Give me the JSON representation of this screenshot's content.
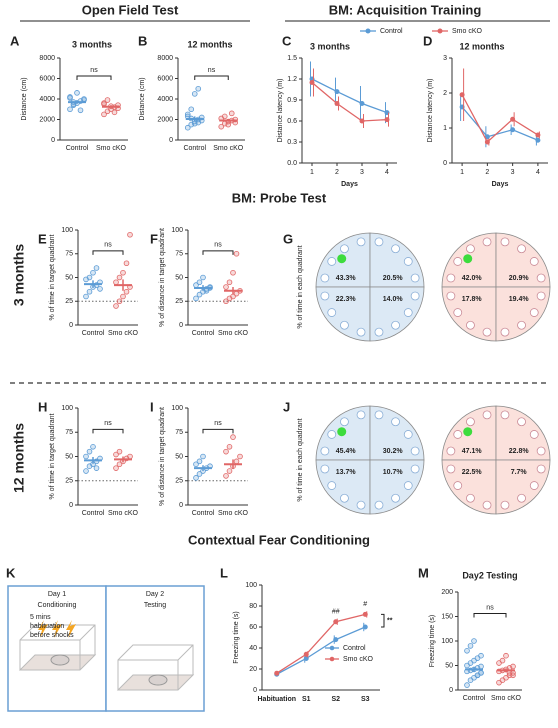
{
  "headings": {
    "open_field": "Open Field Test",
    "acquisition": "BM: Acquisition Training",
    "probe": "BM: Probe Test",
    "fear": "Contextual Fear Conditioning"
  },
  "row_labels": [
    "3 months",
    "12 months"
  ],
  "diagram": {
    "panel": "K",
    "day1": "Day 1",
    "day1_label": "Conditioning",
    "note": [
      "5 mins",
      "habituation",
      "before shocks"
    ],
    "day2": "Day 2",
    "day2_label": "Testing"
  },
  "chart_data": [
    {
      "type": "dotplot",
      "panel": "A",
      "title": "3 months",
      "ylabel": "Distance (cm)",
      "categories": [
        "Control",
        "Smo cKO"
      ],
      "ylim": [
        0,
        8000
      ],
      "yticks": [
        0,
        2000,
        4000,
        6000,
        8000
      ],
      "annotation": "ns",
      "groups": [
        {
          "color": "#5b9bd5",
          "values": [
            3000,
            3400,
            3600,
            3800,
            4000,
            4200,
            3500,
            4600,
            2900,
            3900,
            4100,
            3700
          ],
          "mean": 3700,
          "sem": 180
        },
        {
          "color": "#e06666",
          "values": [
            2500,
            2800,
            3000,
            3200,
            3400,
            3600,
            3900,
            3300,
            2700,
            3100,
            3500
          ],
          "mean": 3250,
          "sem": 150
        }
      ]
    },
    {
      "type": "dotplot",
      "panel": "B",
      "title": "12 months",
      "ylabel": "Distance (cm)",
      "categories": [
        "Control",
        "Smo cKO"
      ],
      "ylim": [
        0,
        8000
      ],
      "yticks": [
        0,
        2000,
        4000,
        6000,
        8000
      ],
      "annotation": "ns",
      "groups": [
        {
          "color": "#5b9bd5",
          "values": [
            1200,
            1500,
            1800,
            2000,
            2200,
            2500,
            3000,
            4500,
            1700,
            1900,
            2300,
            2100,
            1600,
            5000
          ],
          "mean": 2050,
          "sem": 250
        },
        {
          "color": "#e06666",
          "values": [
            1300,
            1600,
            1800,
            1900,
            2000,
            2100,
            2300,
            1500,
            2600,
            1700
          ],
          "mean": 1900,
          "sem": 120
        }
      ]
    },
    {
      "type": "line",
      "panel": "C",
      "title": "3 months",
      "xlabel": "Days",
      "ylabel": "Distance latency (m)",
      "x": [
        1,
        2,
        3,
        4
      ],
      "xlim": [
        0.6,
        4.4
      ],
      "xticks": [
        1,
        2,
        3,
        4
      ],
      "ylim": [
        0,
        1.5
      ],
      "yticks": [
        {
          "value": 0,
          "label": "0.0"
        },
        {
          "value": 0.3,
          "label": "0.3"
        },
        {
          "value": 0.6,
          "label": "0.6"
        },
        {
          "value": 0.9,
          "label": "0.9"
        },
        {
          "value": 1.2,
          "label": "1.2"
        },
        {
          "value": 1.5,
          "label": "1.5"
        }
      ],
      "series": [
        {
          "name": "Control",
          "color": "#5b9bd5",
          "values": [
            1.2,
            1.02,
            0.85,
            0.72
          ],
          "errors": [
            0.25,
            0.2,
            0.25,
            0.15
          ]
        },
        {
          "name": "Smo cKO",
          "color": "#e06666",
          "values": [
            1.15,
            0.85,
            0.6,
            0.62
          ],
          "errors": [
            0.2,
            0.1,
            0.1,
            0.1
          ]
        }
      ]
    },
    {
      "type": "line",
      "panel": "D",
      "title": "12 months",
      "xlabel": "Days",
      "ylabel": "Distance latency (m)",
      "x": [
        1,
        2,
        3,
        4
      ],
      "xlim": [
        0.6,
        4.4
      ],
      "xticks": [
        1,
        2,
        3,
        4
      ],
      "ylim": [
        0,
        3
      ],
      "yticks": [
        0,
        1,
        2,
        3
      ],
      "series": [
        {
          "name": "Control",
          "color": "#5b9bd5",
          "values": [
            1.6,
            0.75,
            0.95,
            0.65
          ],
          "errors": [
            0.4,
            0.3,
            0.15,
            0.15
          ]
        },
        {
          "name": "Smo cKO",
          "color": "#e06666",
          "values": [
            1.95,
            0.6,
            1.25,
            0.8
          ],
          "errors": [
            0.75,
            0.1,
            0.2,
            0.1
          ]
        }
      ]
    },
    {
      "type": "dotplot",
      "panel": "E",
      "ylabel": "% of time in target quadrant",
      "categories": [
        "Control",
        "Smo cKO"
      ],
      "ylim": [
        0,
        100
      ],
      "yticks": [
        0,
        25,
        50,
        75,
        100
      ],
      "annotation": "ns",
      "reference_line": 25,
      "groups": [
        {
          "color": "#5b9bd5",
          "values": [
            30,
            35,
            40,
            42,
            45,
            48,
            50,
            55,
            60,
            38
          ],
          "mean": 43,
          "sem": 4
        },
        {
          "color": "#e06666",
          "values": [
            20,
            25,
            30,
            35,
            40,
            45,
            50,
            55,
            65,
            95
          ],
          "mean": 42,
          "sem": 6
        }
      ]
    },
    {
      "type": "dotplot",
      "panel": "F",
      "ylabel": "% of distance in target quadrant",
      "categories": [
        "Control",
        "Smo cKO"
      ],
      "ylim": [
        0,
        100
      ],
      "yticks": [
        0,
        25,
        50,
        75,
        100
      ],
      "annotation": "ns",
      "reference_line": 25,
      "groups": [
        {
          "color": "#5b9bd5",
          "values": [
            28,
            32,
            35,
            38,
            40,
            42,
            45,
            50,
            36,
            39
          ],
          "mean": 39,
          "sem": 3
        },
        {
          "color": "#e06666",
          "values": [
            25,
            28,
            30,
            33,
            36,
            40,
            45,
            55,
            75
          ],
          "mean": 36,
          "sem": 4
        }
      ]
    },
    {
      "type": "quadrant",
      "panel": "G",
      "ylabel": "% of time in each quadrant",
      "groups": [
        {
          "name": "Control",
          "color": "#4a86c8",
          "fill": "#dce9f5",
          "values": [
            43.3,
            20.5,
            22.3,
            14.0
          ],
          "value_labels": [
            "43.3%",
            "20.5%",
            "22.3%",
            "14.0%"
          ]
        },
        {
          "name": "Smo cKO",
          "color": "#c0283a",
          "fill": "#fbe1dc",
          "values": [
            42.0,
            20.9,
            17.8,
            19.4
          ],
          "value_labels": [
            "42.0%",
            "20.9%",
            "17.8%",
            "19.4%"
          ]
        }
      ]
    },
    {
      "type": "dotplot",
      "panel": "H",
      "ylabel": "% of time in target quadrant",
      "categories": [
        "Control",
        "Smo cKO"
      ],
      "ylim": [
        0,
        100
      ],
      "yticks": [
        0,
        25,
        50,
        75,
        100
      ],
      "annotation": "ns",
      "reference_line": 25,
      "groups": [
        {
          "color": "#5b9bd5",
          "values": [
            35,
            40,
            42,
            45,
            48,
            50,
            55,
            60,
            38
          ],
          "mean": 46,
          "sem": 3.5
        },
        {
          "color": "#e06666",
          "values": [
            38,
            42,
            45,
            48,
            50,
            52,
            55
          ],
          "mean": 47,
          "sem": 3
        }
      ]
    },
    {
      "type": "dotplot",
      "panel": "I",
      "ylabel": "% of distance in target quadrant",
      "categories": [
        "Control",
        "Smo cKO"
      ],
      "ylim": [
        0,
        100
      ],
      "yticks": [
        0,
        25,
        50,
        75,
        100
      ],
      "annotation": "ns",
      "reference_line": 25,
      "groups": [
        {
          "color": "#5b9bd5",
          "values": [
            28,
            32,
            35,
            38,
            40,
            42,
            45,
            50
          ],
          "mean": 38,
          "sem": 3
        },
        {
          "color": "#e06666",
          "values": [
            30,
            35,
            40,
            45,
            50,
            55,
            60,
            70
          ],
          "mean": 42,
          "sem": 5
        }
      ]
    },
    {
      "type": "quadrant",
      "panel": "J",
      "ylabel": "% of time in each quadrant",
      "groups": [
        {
          "name": "Control",
          "color": "#4a86c8",
          "fill": "#dce9f5",
          "values": [
            45.4,
            30.2,
            13.7,
            10.7
          ],
          "value_labels": [
            "45.4%",
            "30.2%",
            "13.7%",
            "10.7%"
          ]
        },
        {
          "name": "Smo cKO",
          "color": "#c0283a",
          "fill": "#fbe1dc",
          "values": [
            47.1,
            22.8,
            22.5,
            7.7
          ],
          "value_labels": [
            "47.1%",
            "22.8%",
            "22.5%",
            "7.7%"
          ]
        }
      ]
    },
    {
      "type": "line",
      "panel": "L",
      "ylabel": "Freezing time (s)",
      "categories": [
        "Habituation",
        "S1",
        "S2",
        "S3"
      ],
      "ylim": [
        0,
        100
      ],
      "yticks": [
        0,
        20,
        40,
        60,
        80,
        100
      ],
      "annotations": [
        null,
        null,
        "##",
        "#"
      ],
      "significance": "**",
      "series": [
        {
          "name": "Control",
          "color": "#5b9bd5",
          "values": [
            15,
            30,
            48,
            60
          ],
          "errors": [
            1.5,
            4,
            4,
            4
          ]
        },
        {
          "name": "Smo cKO",
          "color": "#e06666",
          "values": [
            16,
            34,
            65,
            72
          ],
          "errors": [
            1.5,
            3,
            3,
            3
          ]
        }
      ]
    },
    {
      "type": "dotplot",
      "panel": "M",
      "title": "Day2 Testing",
      "ylabel": "Freezing time (s)",
      "categories": [
        "Control",
        "Smo cKO"
      ],
      "ylim": [
        0,
        200
      ],
      "yticks": [
        0,
        50,
        100,
        150,
        200
      ],
      "annotation": "ns",
      "groups": [
        {
          "color": "#5b9bd5",
          "values": [
            10,
            20,
            25,
            30,
            35,
            38,
            40,
            42,
            45,
            48,
            50,
            55,
            60,
            65,
            70,
            80,
            90,
            100,
            30,
            35
          ],
          "mean": 42,
          "sem": 5
        },
        {
          "color": "#e06666",
          "values": [
            15,
            20,
            25,
            30,
            35,
            38,
            40,
            42,
            45,
            48,
            55,
            60,
            70,
            35,
            30
          ],
          "mean": 40,
          "sem": 4
        }
      ]
    }
  ]
}
